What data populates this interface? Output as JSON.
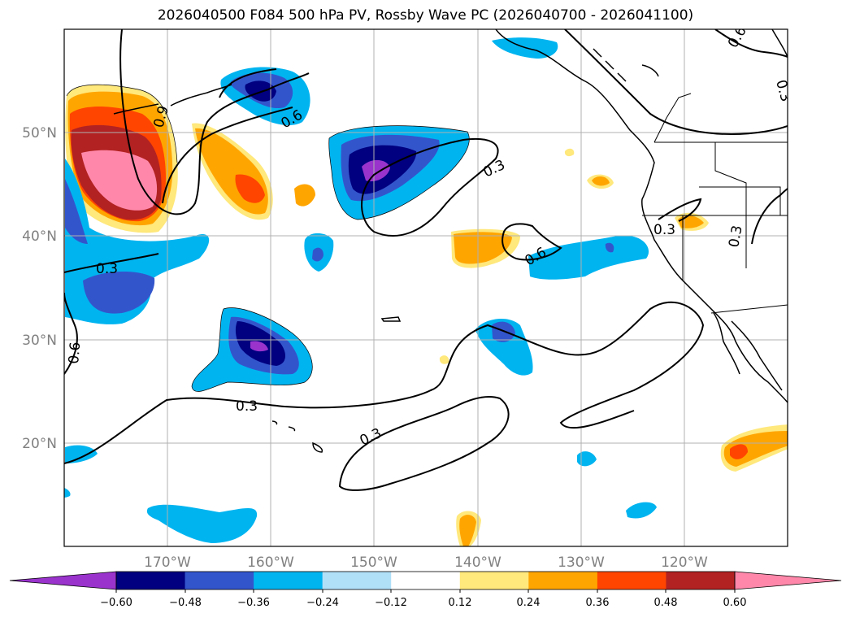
{
  "figure": {
    "title": "2026040500 F084 500 hPa PV, Rossby Wave PC (2026040700 - 2026041100)"
  },
  "map": {
    "lon_range": [
      -180,
      -110
    ],
    "lat_range": [
      10,
      60
    ],
    "lat_labels": [
      "20°N",
      "30°N",
      "40°N",
      "50°N"
    ],
    "lat_values": [
      20,
      30,
      40,
      50
    ],
    "lon_labels": [
      "170°W",
      "160°W",
      "150°W",
      "140°W",
      "130°W",
      "120°W"
    ],
    "lon_values": [
      -170,
      -160,
      -150,
      -140,
      -130,
      -120
    ],
    "grid": true
  },
  "contours": {
    "color": "#000000",
    "labels": [
      "0.6",
      "0.9",
      "0.6",
      "0.6",
      "0.3",
      "0.3",
      "0.3",
      "0.6",
      "0.3",
      "0.3",
      "0.6",
      "0.3",
      "0.3"
    ]
  },
  "colorbar": {
    "orientation": "horizontal",
    "extend": "both",
    "ticks": [
      "−0.60",
      "−0.48",
      "−0.36",
      "−0.24",
      "−0.12",
      "0.12",
      "0.24",
      "0.36",
      "0.48",
      "0.60"
    ],
    "colors": [
      "#9933cc",
      "#000080",
      "#3355cc",
      "#00b4f0",
      "#b0e0f8",
      "#ffffff",
      "#ffe87c",
      "#ffa500",
      "#ff4500",
      "#b22222",
      "#ff88aa",
      "#ff88aa"
    ]
  },
  "fill_colors": {
    "purple": "#9933cc",
    "navy": "#000080",
    "blue": "#3355cc",
    "cyan": "#00b4f0",
    "lightblue": "#b0e0f8",
    "yellow": "#ffe87c",
    "orange": "#ffa500",
    "redorange": "#ff4500",
    "darkred": "#b22222",
    "pink": "#ff88aa"
  }
}
